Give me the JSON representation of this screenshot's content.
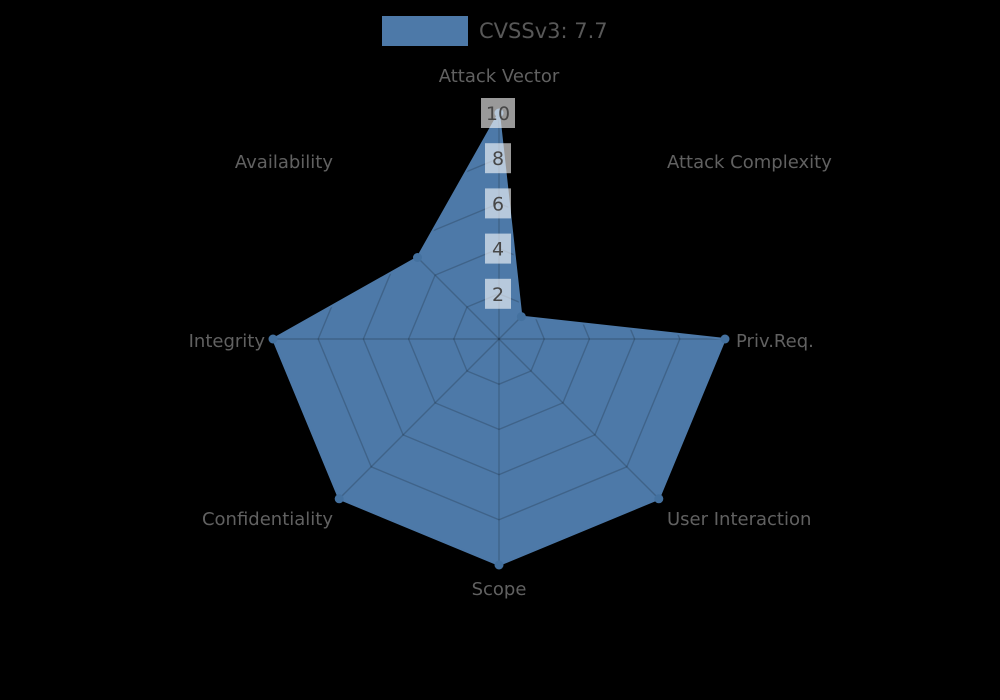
{
  "legend": {
    "label": "CVSSv3: 7.7",
    "swatch_color": "#4d79a8"
  },
  "chart_data": {
    "type": "radar",
    "title": "CVSSv3: 7.7",
    "categories": [
      "Attack Vector",
      "Attack Complexity",
      "Priv.Req.",
      "User Interaction",
      "Scope",
      "Confidentiality",
      "Integrity",
      "Availability"
    ],
    "series": [
      {
        "name": "CVSSv3: 7.7",
        "values": [
          10,
          1.4,
          10,
          10,
          10,
          10,
          10,
          5.1
        ]
      }
    ],
    "ticks": [
      2,
      4,
      6,
      8,
      10
    ],
    "tick_labels": [
      "2",
      "4",
      "6",
      "8",
      "10"
    ],
    "range": [
      0,
      10
    ],
    "grid": "on",
    "grid_shape": "octagon",
    "legend_position": "top-center",
    "fill_color": "#4d79a8",
    "marker_color": "#44719f",
    "grid_color": "rgba(0,0,0,0.18)",
    "tick_box_color": "rgba(255,255,255,0.6)",
    "label_color": "#616161",
    "background_color": "#000000"
  }
}
